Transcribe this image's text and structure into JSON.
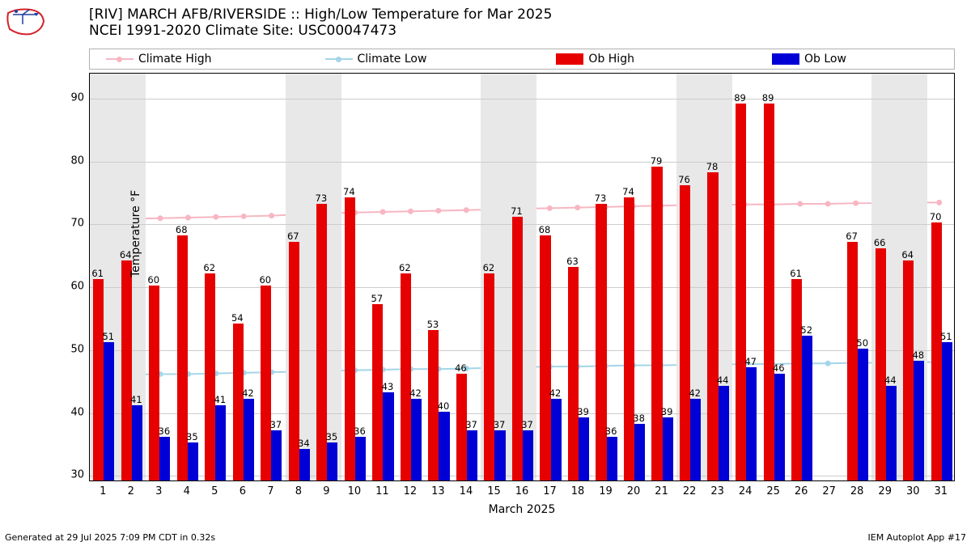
{
  "title_line1": "[RIV] MARCH AFB/RIVERSIDE :: High/Low Temperature for Mar 2025",
  "title_line2": "NCEI 1991-2020 Climate Site: USC00047473",
  "footer_left": "Generated at 29 Jul 2025 7:09 PM CDT in 0.32s",
  "footer_right": "IEM Autoplot App #17",
  "y_axis_label": "Temperature °F",
  "x_axis_label": "March 2025",
  "legend": {
    "climate_high": "Climate High",
    "climate_low": "Climate Low",
    "ob_high": "Ob High",
    "ob_low": "Ob Low"
  },
  "colors": {
    "climate_high": "#f7b6c2",
    "climate_low": "#a3d5e8",
    "ob_high": "#e60000",
    "ob_low": "#0000d6",
    "grid": "#cccccc",
    "weekend_band": "#e8e8e8",
    "background": "#ffffff",
    "border": "#000000",
    "logo_red": "#d4202a",
    "logo_blue": "#2040a0"
  },
  "chart": {
    "ylim": [
      29,
      94
    ],
    "yticks": [
      30,
      40,
      50,
      60,
      70,
      80,
      90
    ],
    "days": [
      1,
      2,
      3,
      4,
      5,
      6,
      7,
      8,
      9,
      10,
      11,
      12,
      13,
      14,
      15,
      16,
      17,
      18,
      19,
      20,
      21,
      22,
      23,
      24,
      25,
      26,
      27,
      28,
      29,
      30,
      31
    ],
    "weekend_days": [
      1,
      2,
      8,
      9,
      15,
      16,
      22,
      23,
      29,
      30
    ],
    "ob_high": [
      61,
      64,
      60,
      68,
      62,
      54,
      60,
      67,
      73,
      74,
      57,
      62,
      53,
      46,
      62,
      71,
      68,
      63,
      73,
      74,
      79,
      76,
      78,
      89,
      89,
      61,
      null,
      67,
      66,
      64,
      70
    ],
    "ob_low": [
      51,
      41,
      36,
      35,
      41,
      42,
      37,
      34,
      35,
      36,
      43,
      42,
      40,
      37,
      37,
      37,
      42,
      39,
      36,
      38,
      39,
      42,
      44,
      47,
      46,
      52,
      null,
      50,
      44,
      48,
      51
    ],
    "climate_high": [
      70.7,
      70.8,
      70.9,
      71.0,
      71.1,
      71.2,
      71.3,
      71.5,
      71.7,
      71.8,
      71.9,
      72.0,
      72.1,
      72.2,
      72.3,
      72.4,
      72.5,
      72.6,
      72.7,
      72.8,
      72.9,
      73.0,
      73.0,
      73.1,
      73.1,
      73.2,
      73.2,
      73.3,
      73.3,
      73.4,
      73.4
    ],
    "climate_low": [
      45.8,
      45.9,
      46.0,
      46.0,
      46.1,
      46.2,
      46.3,
      46.4,
      46.5,
      46.6,
      46.7,
      46.8,
      46.8,
      46.9,
      47.0,
      47.1,
      47.2,
      47.2,
      47.3,
      47.4,
      47.4,
      47.5,
      47.5,
      47.6,
      47.6,
      47.7,
      47.7,
      47.8,
      47.8,
      47.9,
      47.9
    ],
    "bar_width_ratio": 0.38,
    "title_fontsize": 17,
    "axis_fontsize": 14,
    "tick_fontsize": 13,
    "value_fontsize": 11.5
  }
}
